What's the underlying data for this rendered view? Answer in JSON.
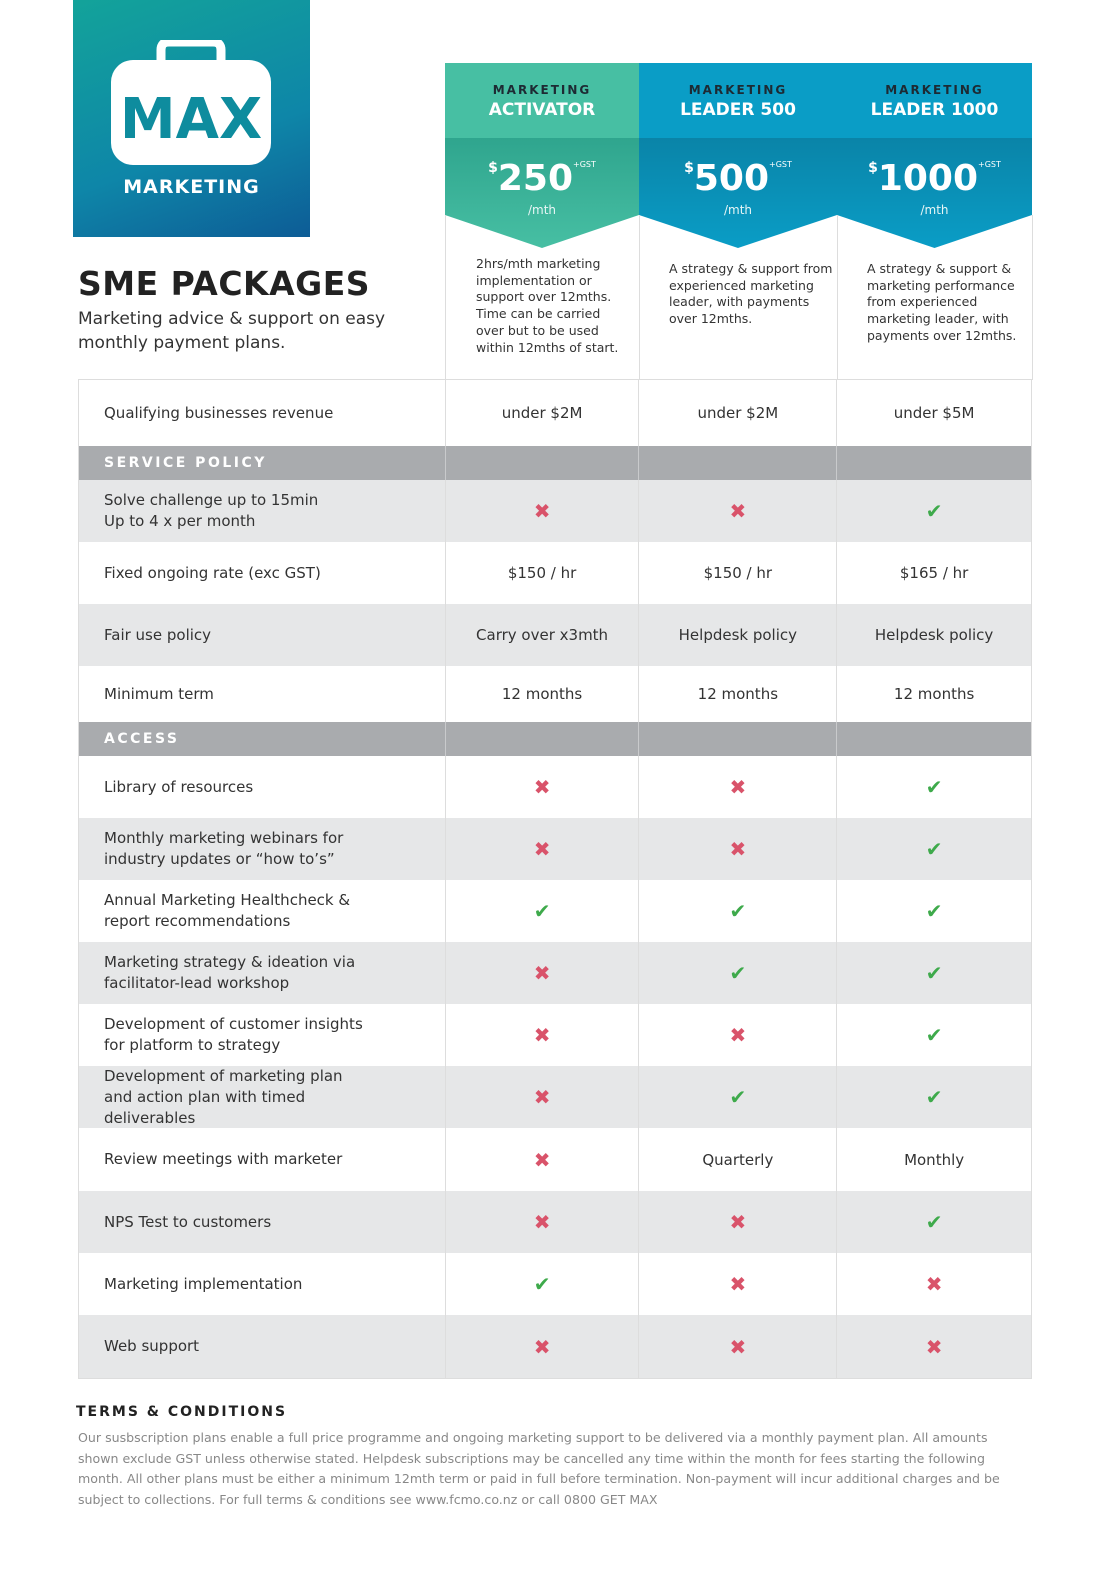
{
  "logo": {
    "text": "MAX",
    "subtitle": "MARKETING"
  },
  "header": {
    "title": "SME PACKAGES",
    "subtitle": "Marketing advice & support on easy monthly payment plans."
  },
  "colors": {
    "activator": "#47bfa3",
    "activator_band": "#2fa58e",
    "leader": "#0a9dc6",
    "leader_band": "#0a84a8",
    "cross": "#d9536a",
    "check": "#3eaa4b",
    "section": "#a9abae"
  },
  "plans": [
    {
      "kicker": "MARKETING",
      "name": "ACTIVATOR",
      "currency": "$",
      "price": "250",
      "gst": "+GST",
      "per": "/mth",
      "description": "2hrs/mth marketing implementation or support over 12mths. Time can be carried over but to be used within 12mths of start."
    },
    {
      "kicker": "MARKETING",
      "name": "LEADER 500",
      "currency": "$",
      "price": "500",
      "gst": "+GST",
      "per": "/mth",
      "description": "A strategy & support from experienced marketing leader, with payments over 12mths."
    },
    {
      "kicker": "MARKETING",
      "name": "LEADER 1000",
      "currency": "$",
      "price": "1000",
      "gst": "+GST",
      "per": "/mth",
      "description": "A strategy & support & marketing performance from experienced marketing leader, with payments over 12mths."
    }
  ],
  "rows": [
    {
      "label": "Qualifying businesses  revenue",
      "values": [
        "under $2M",
        "under $2M",
        "under $5M"
      ],
      "h": 66,
      "bg": "white"
    },
    {
      "section": "SERVICE POLICY"
    },
    {
      "label": "Solve challenge up to 15min\nUp to 4 x per month",
      "values": [
        "cross",
        "cross",
        "check"
      ],
      "h": 62,
      "bg": "grey"
    },
    {
      "label": "Fixed ongoing rate (exc GST)",
      "values": [
        "$150 / hr",
        "$150 / hr",
        "$165 / hr"
      ],
      "h": 62,
      "bg": "white"
    },
    {
      "label": "Fair use policy",
      "values": [
        "Carry over x3mth",
        "Helpdesk policy",
        "Helpdesk policy"
      ],
      "h": 62,
      "bg": "grey"
    },
    {
      "label": "Minimum term",
      "values": [
        "12 months",
        "12 months",
        "12 months"
      ],
      "h": 56,
      "bg": "white"
    },
    {
      "section": "ACCESS"
    },
    {
      "label": "Library of resources",
      "values": [
        "cross",
        "cross",
        "check"
      ],
      "h": 62,
      "bg": "white"
    },
    {
      "label": "Monthly marketing webinars for industry updates or “how to’s”",
      "values": [
        "cross",
        "cross",
        "check"
      ],
      "h": 62,
      "bg": "grey"
    },
    {
      "label": "Annual Marketing Healthcheck & report recommendations",
      "values": [
        "check",
        "check",
        "check"
      ],
      "h": 62,
      "bg": "white"
    },
    {
      "label": "Marketing strategy & ideation via facilitator-lead workshop",
      "values": [
        "cross",
        "check",
        "check"
      ],
      "h": 62,
      "bg": "grey"
    },
    {
      "label": "Development of customer insights for platform to strategy",
      "values": [
        "cross",
        "cross",
        "check"
      ],
      "h": 62,
      "bg": "white"
    },
    {
      "label": "Development of marketing plan and action plan with timed deliverables",
      "values": [
        "cross",
        "check",
        "check"
      ],
      "h": 62,
      "bg": "grey"
    },
    {
      "label": "Review meetings with marketer",
      "values": [
        "cross",
        "Quarterly",
        "Monthly"
      ],
      "h": 63,
      "bg": "white"
    },
    {
      "label": "NPS Test to customers",
      "values": [
        "cross",
        "cross",
        "check"
      ],
      "h": 62,
      "bg": "grey"
    },
    {
      "label": "Marketing implementation",
      "values": [
        "check",
        "cross",
        "cross"
      ],
      "h": 62,
      "bg": "white"
    },
    {
      "label": "Web support",
      "values": [
        "cross",
        "cross",
        "cross"
      ],
      "h": 63,
      "bg": "grey"
    }
  ],
  "terms": {
    "title": "TERMS & CONDITIONS",
    "text": "Our susbscription plans enable a full price programme and ongoing marketing support to be delivered via a monthly payment plan. All amounts shown exclude GST unless otherwise stated.  Helpdesk subscriptions may be cancelled any time within the month for fees starting the following month.  All other plans must be either a minimum 12mth term or paid in full before termination. Non-payment will incur additional charges and be subject to collections. For full terms & conditions see www.fcmo.co.nz or call 0800 GET MAX"
  }
}
